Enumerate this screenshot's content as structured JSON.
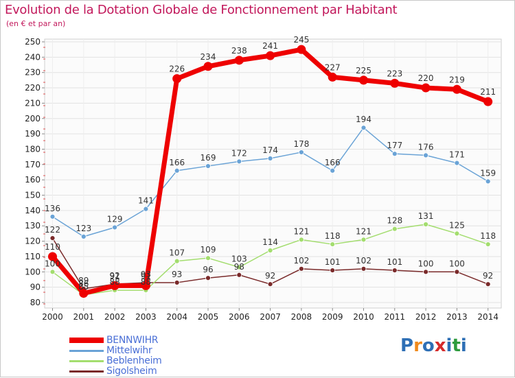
{
  "chart_data": {
    "type": "line",
    "title": "Evolution de la Dotation Globale de Fonctionnement par Habitant",
    "subtitle": "(en € et par an)",
    "xlabel": "",
    "ylabel": "",
    "ylim": [
      80,
      250
    ],
    "y_ticks": [
      80,
      90,
      100,
      110,
      120,
      130,
      140,
      150,
      160,
      170,
      180,
      190,
      200,
      210,
      220,
      230,
      240,
      250
    ],
    "categories": [
      "2000",
      "2001",
      "2002",
      "2003",
      "2004",
      "2005",
      "2006",
      "2007",
      "2008",
      "2009",
      "2010",
      "2011",
      "2012",
      "2013",
      "2014"
    ],
    "series": [
      {
        "name": "BENNWIHR",
        "color": "#ee0000",
        "values": [
          110,
          86,
          91,
          91,
          226,
          234,
          238,
          241,
          245,
          227,
          225,
          223,
          220,
          219,
          211
        ],
        "labels": [
          "110",
          "86",
          "91",
          "91",
          "226",
          "234",
          "238",
          "241",
          "245",
          "227",
          "225",
          "223",
          "220",
          "219",
          "211"
        ]
      },
      {
        "name": "Mittelwihr",
        "color": "#6aa3d6",
        "values": [
          136,
          123,
          129,
          141,
          166,
          169,
          172,
          174,
          178,
          166,
          194,
          177,
          176,
          171,
          159
        ],
        "labels": [
          "136",
          "123",
          "129",
          "141",
          "166",
          "169",
          "172",
          "174",
          "178",
          "166",
          "194",
          "177",
          "176",
          "171",
          "159"
        ]
      },
      {
        "name": "Beblenheim",
        "color": "#a3dd6e",
        "values": [
          100,
          85,
          88,
          88,
          107,
          109,
          103,
          114,
          121,
          118,
          121,
          128,
          131,
          125,
          118
        ],
        "labels": [
          "100",
          "85",
          "88",
          "88",
          "107",
          "109",
          "103",
          "114",
          "121",
          "118",
          "121",
          "128",
          "131",
          "125",
          "118"
        ]
      },
      {
        "name": "Sigolsheim",
        "color": "#7a2a2a",
        "values": [
          122,
          89,
          92,
          93,
          93,
          96,
          98,
          92,
          102,
          101,
          102,
          101,
          100,
          100,
          92
        ],
        "labels": [
          "122",
          "89",
          "92",
          "93",
          "93",
          "96",
          "98",
          "92",
          "102",
          "101",
          "102",
          "101",
          "100",
          "100",
          "92"
        ]
      }
    ],
    "legend_position": "bottom-left"
  },
  "logo": {
    "letters": [
      "P",
      "r",
      "o",
      "x",
      "i",
      "t",
      "i"
    ],
    "colors": [
      "#2e6fb5",
      "#f08a1c",
      "#2e6fb5",
      "#d62b2b",
      "#2e6fb5",
      "#2e9b3e",
      "#2e6fb5"
    ]
  }
}
